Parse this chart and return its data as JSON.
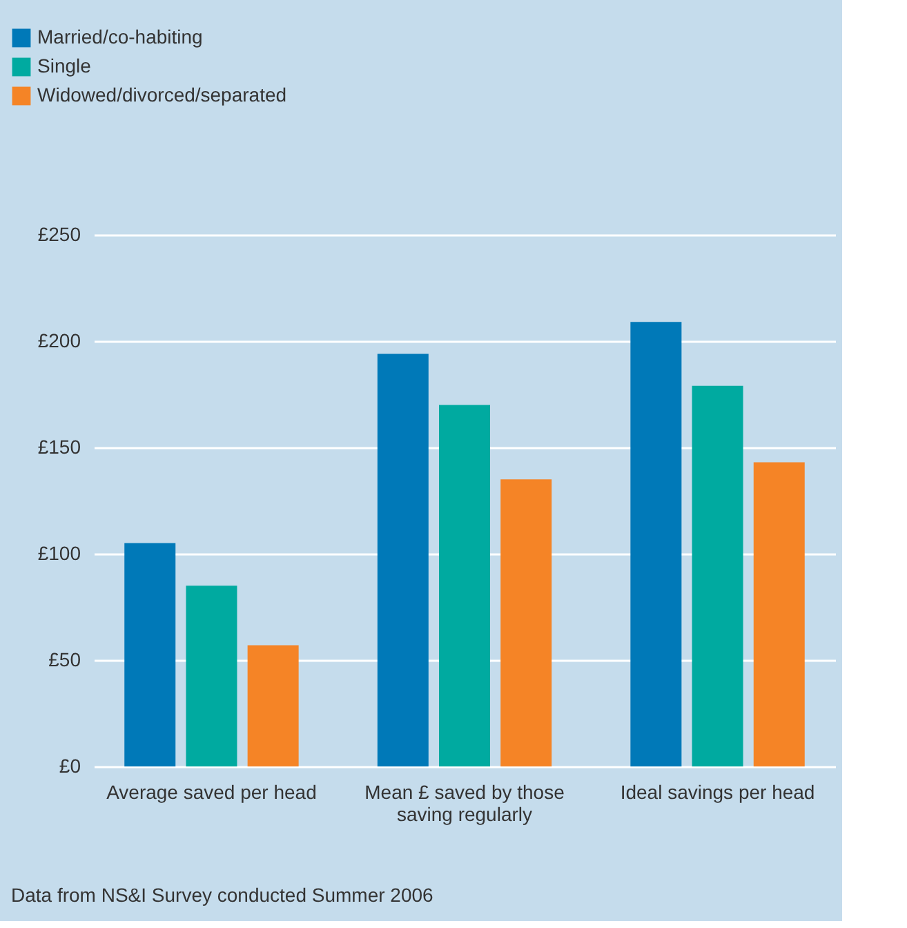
{
  "chart_data": {
    "type": "bar",
    "categories": [
      "Average saved per head",
      "Mean £ saved by those\nsaving regularly",
      "Ideal savings per head"
    ],
    "series": [
      {
        "name": "Married/co-habiting",
        "color": "#0079b8",
        "values": [
          105,
          194,
          209
        ]
      },
      {
        "name": "Single",
        "color": "#00aaa0",
        "values": [
          85,
          170,
          179
        ]
      },
      {
        "name": "Widowed/divorced/separated",
        "color": "#f58426",
        "values": [
          57,
          135,
          143
        ]
      }
    ],
    "ylim": [
      0,
      250
    ],
    "yticks": [
      {
        "value": 0,
        "label": "£0"
      },
      {
        "value": 50,
        "label": "£50"
      },
      {
        "value": 100,
        "label": "£100"
      },
      {
        "value": 150,
        "label": "£150"
      },
      {
        "value": 200,
        "label": "£200"
      },
      {
        "value": 250,
        "label": "£250"
      }
    ],
    "grid": "y",
    "legend": "top left",
    "annotations": [
      "Data from NS&I Survey conducted Summer 2006"
    ]
  }
}
